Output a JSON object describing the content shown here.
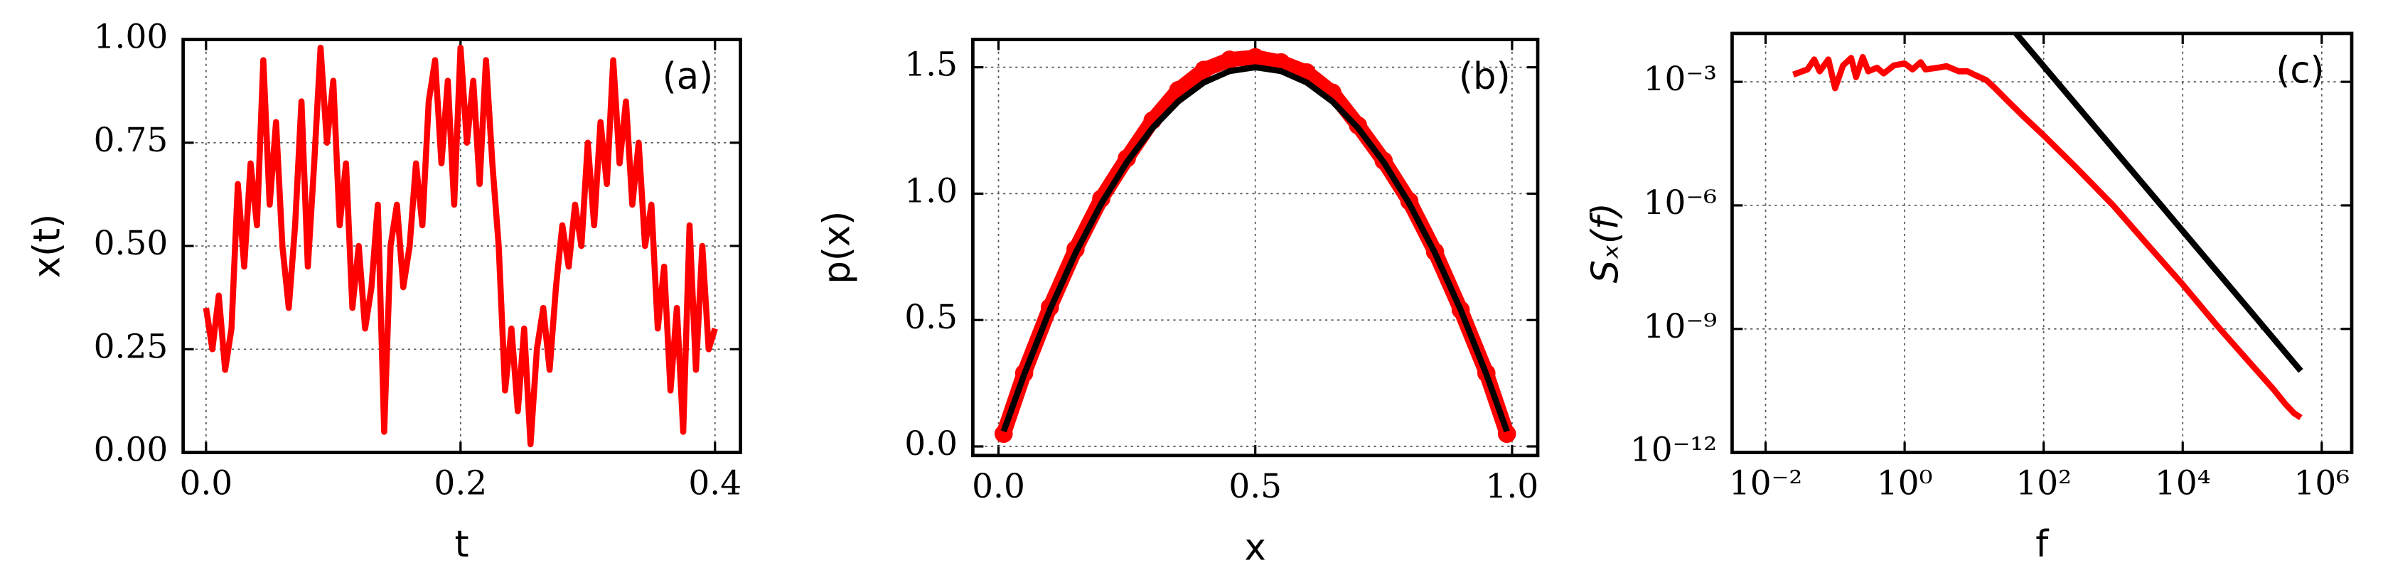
{
  "chart_data": [
    {
      "type": "line",
      "annotation": "(a)",
      "xlabel": "t",
      "ylabel": "x(t)",
      "xlim": [
        -0.018,
        0.42
      ],
      "ylim": [
        0,
        1
      ],
      "xticks": [
        {
          "value": 0,
          "label": "0.0"
        },
        {
          "value": 0.2,
          "label": "0.2"
        },
        {
          "value": 0.4,
          "label": "0.4"
        }
      ],
      "yticks": [
        {
          "value": 0,
          "label": "0.00"
        },
        {
          "value": 0.25,
          "label": "0.25"
        },
        {
          "value": 0.5,
          "label": "0.50"
        },
        {
          "value": 0.75,
          "label": "0.75"
        },
        {
          "value": 1,
          "label": "1.00"
        }
      ],
      "grid": true,
      "series": [
        {
          "type": "line",
          "color": "#ff0000",
          "x": [
            0,
            0.005,
            0.01,
            0.015,
            0.02,
            0.025,
            0.03,
            0.035,
            0.04,
            0.045,
            0.05,
            0.055,
            0.06,
            0.065,
            0.07,
            0.075,
            0.08,
            0.085,
            0.09,
            0.095,
            0.1,
            0.105,
            0.11,
            0.115,
            0.12,
            0.125,
            0.13,
            0.135,
            0.14,
            0.145,
            0.15,
            0.155,
            0.16,
            0.165,
            0.17,
            0.175,
            0.18,
            0.185,
            0.19,
            0.195,
            0.2,
            0.205,
            0.21,
            0.215,
            0.22,
            0.225,
            0.23,
            0.235,
            0.24,
            0.245,
            0.25,
            0.255,
            0.26,
            0.265,
            0.27,
            0.275,
            0.28,
            0.285,
            0.29,
            0.295,
            0.3,
            0.305,
            0.31,
            0.315,
            0.32,
            0.325,
            0.33,
            0.335,
            0.34,
            0.345,
            0.35,
            0.355,
            0.36,
            0.365,
            0.37,
            0.375,
            0.38,
            0.385,
            0.39,
            0.395,
            0.4
          ],
          "values": [
            0.35,
            0.25,
            0.38,
            0.2,
            0.3,
            0.65,
            0.45,
            0.7,
            0.55,
            0.95,
            0.6,
            0.8,
            0.5,
            0.35,
            0.55,
            0.85,
            0.45,
            0.7,
            0.98,
            0.75,
            0.9,
            0.55,
            0.7,
            0.35,
            0.5,
            0.3,
            0.4,
            0.6,
            0.05,
            0.5,
            0.6,
            0.4,
            0.5,
            0.7,
            0.55,
            0.85,
            0.95,
            0.7,
            0.9,
            0.6,
            0.98,
            0.75,
            0.9,
            0.65,
            0.95,
            0.7,
            0.5,
            0.15,
            0.3,
            0.1,
            0.3,
            0.02,
            0.25,
            0.35,
            0.2,
            0.4,
            0.55,
            0.45,
            0.6,
            0.5,
            0.75,
            0.55,
            0.8,
            0.65,
            0.95,
            0.7,
            0.85,
            0.6,
            0.75,
            0.5,
            0.6,
            0.3,
            0.45,
            0.15,
            0.35,
            0.05,
            0.55,
            0.2,
            0.5,
            0.25,
            0.3
          ]
        }
      ]
    },
    {
      "type": "scatter",
      "annotation": "(b)",
      "xlabel": "x",
      "ylabel": "p(x)",
      "xlim": [
        -0.05,
        1.05
      ],
      "ylim": [
        -0.036,
        1.61
      ],
      "xticks": [
        {
          "value": 0,
          "label": "0.0"
        },
        {
          "value": 0.5,
          "label": "0.5"
        },
        {
          "value": 1,
          "label": "1.0"
        }
      ],
      "yticks": [
        {
          "value": 0,
          "label": "0.0"
        },
        0.5,
        {
          "value": 1,
          "label": "1.0"
        },
        1.5
      ],
      "grid": true,
      "series": [
        {
          "type": "scatter",
          "color": "#ff0000",
          "x": [
            0.01,
            0.05,
            0.1,
            0.15,
            0.2,
            0.25,
            0.3,
            0.35,
            0.4,
            0.45,
            0.5,
            0.55,
            0.6,
            0.65,
            0.7,
            0.75,
            0.8,
            0.85,
            0.9,
            0.95,
            0.99
          ],
          "values": [
            0.05,
            0.29,
            0.55,
            0.78,
            0.98,
            1.14,
            1.29,
            1.41,
            1.49,
            1.53,
            1.54,
            1.52,
            1.48,
            1.4,
            1.27,
            1.13,
            0.97,
            0.77,
            0.54,
            0.29,
            0.05
          ]
        },
        {
          "type": "line",
          "color": "#000000",
          "x": [
            0.01,
            0.05,
            0.1,
            0.15,
            0.2,
            0.25,
            0.3,
            0.35,
            0.4,
            0.45,
            0.5,
            0.55,
            0.6,
            0.65,
            0.7,
            0.75,
            0.8,
            0.85,
            0.9,
            0.95,
            0.99
          ],
          "values": [
            0.0594,
            0.285,
            0.54,
            0.765,
            0.96,
            1.125,
            1.26,
            1.365,
            1.44,
            1.485,
            1.5,
            1.485,
            1.44,
            1.365,
            1.26,
            1.125,
            0.96,
            0.765,
            0.54,
            0.285,
            0.0594
          ]
        }
      ]
    },
    {
      "type": "line",
      "annotation": "(c)",
      "xlabel": "f",
      "ylabel": "Sₓ(f)",
      "xscale": "log",
      "yscale": "log",
      "xlim": [
        0.0033,
        2700000
      ],
      "ylim": [
        1e-12,
        0.015
      ],
      "xticks": [
        {
          "value": 0.01,
          "label": "10⁻²"
        },
        {
          "value": 1,
          "label": "10⁰"
        },
        {
          "value": 100,
          "label": "10²"
        },
        {
          "value": 10000,
          "label": "10⁴"
        },
        {
          "value": 1000000,
          "label": "10⁶"
        }
      ],
      "yticks": [
        {
          "value": 1e-12,
          "label": "10⁻¹²"
        },
        {
          "value": 1e-09,
          "label": "10⁻⁹"
        },
        {
          "value": 1e-06,
          "label": "10⁻⁶"
        },
        {
          "value": 0.001,
          "label": "10⁻³"
        }
      ],
      "grid": true,
      "series": [
        {
          "type": "line",
          "color": "#ff0000",
          "x": [
            0.025,
            0.04,
            0.05,
            0.06,
            0.08,
            0.1,
            0.13,
            0.17,
            0.2,
            0.25,
            0.3,
            0.4,
            0.5,
            0.7,
            1,
            1.3,
            1.7,
            2,
            3,
            4,
            6,
            8,
            10,
            15,
            20,
            30,
            50,
            100,
            300,
            1000,
            3000,
            10000,
            30000,
            100000,
            200000,
            300000,
            400000,
            500000
          ],
          "values": [
            0.0015,
            0.002,
            0.0035,
            0.0018,
            0.0035,
            0.0007,
            0.0025,
            0.0038,
            0.0013,
            0.004,
            0.0018,
            0.0022,
            0.0016,
            0.0025,
            0.0028,
            0.002,
            0.003,
            0.002,
            0.0022,
            0.0024,
            0.0018,
            0.0018,
            0.0015,
            0.0011,
            0.0007,
            0.00035,
            0.00015,
            5e-05,
            8e-06,
            1e-06,
            1.2e-07,
            1.2e-08,
            1.3e-09,
            1.3e-10,
            3.5e-11,
            1.5e-11,
            9e-12,
            7e-12
          ]
        },
        {
          "type": "line",
          "color": "#000000",
          "x": [
            40,
            500000
          ],
          "values": [
            0.015,
            9.6e-11
          ]
        }
      ]
    }
  ]
}
